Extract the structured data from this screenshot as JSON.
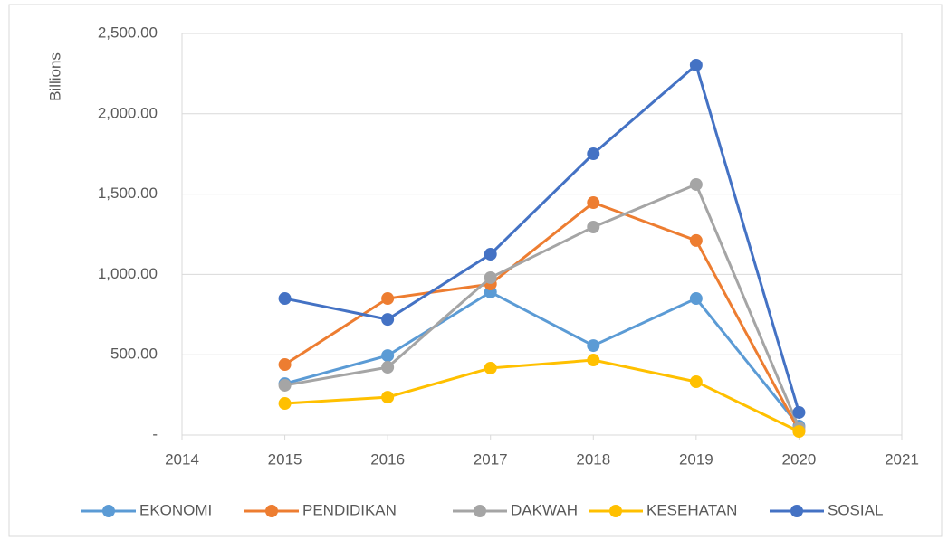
{
  "chart_data": {
    "type": "line",
    "y_label": "Billions",
    "x": [
      2015,
      2016,
      2017,
      2018,
      2019,
      2020
    ],
    "series": [
      {
        "name": "EKONOMI",
        "color": "#5b9bd5",
        "values": [
          320,
          495,
          890,
          557,
          850,
          56
        ]
      },
      {
        "name": "PENDIDIKAN",
        "color": "#ed7d31",
        "values": [
          439,
          850,
          940,
          1447,
          1211,
          28
        ]
      },
      {
        "name": "DAKWAH",
        "color": "#a5a5a5",
        "values": [
          310,
          422,
          980,
          1295,
          1560,
          45
        ]
      },
      {
        "name": "KESEHATAN",
        "color": "#ffc000",
        "values": [
          197,
          236,
          417,
          467,
          332,
          22
        ]
      },
      {
        "name": "SOSIAL",
        "color": "#4472c4",
        "values": [
          850,
          720,
          1126,
          1751,
          2303,
          141
        ]
      }
    ],
    "xlim": [
      2014,
      2021
    ],
    "xticks": [
      2014,
      2015,
      2016,
      2017,
      2018,
      2019,
      2020,
      2021
    ],
    "ylim": [
      0,
      2500
    ],
    "yticks": [
      {
        "value": 0,
        "label": "-"
      },
      {
        "value": 500,
        "label": "500.00"
      },
      {
        "value": 1000,
        "label": "1,000.00"
      },
      {
        "value": 1500,
        "label": "1,500.00"
      },
      {
        "value": 2000,
        "label": "2,000.00"
      },
      {
        "value": 2500,
        "label": "2,500.00"
      }
    ],
    "grid": true,
    "legend": "bottom"
  }
}
